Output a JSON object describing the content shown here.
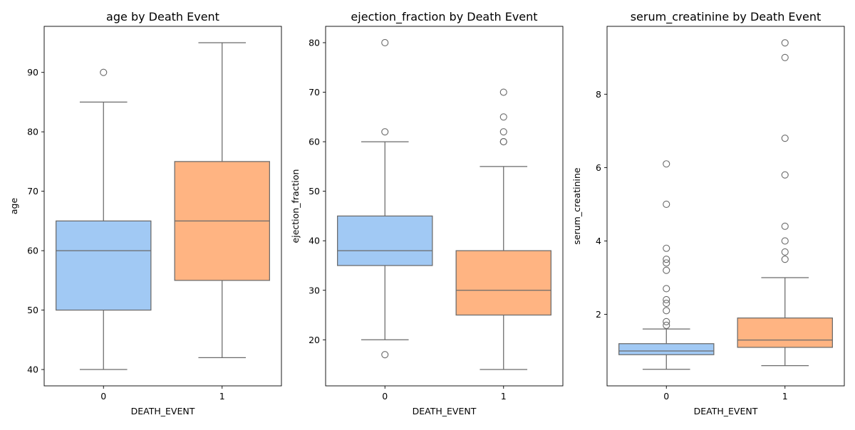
{
  "colors": {
    "group0": "#a1c9f4",
    "group1": "#ffb482",
    "stroke": "#6a6a6a",
    "axis": "#000000",
    "flier": "#6a6a6a"
  },
  "chart_data": [
    {
      "type": "box",
      "title": "age by Death Event",
      "xlabel": "DEATH_EVENT",
      "ylabel": "age",
      "categories": [
        "0",
        "1"
      ],
      "ylim": [
        37.25,
        97.75
      ],
      "yticks": [
        40,
        50,
        60,
        70,
        80,
        90
      ],
      "ytick_labels": [
        "40",
        "50",
        "60",
        "70",
        "80",
        "90"
      ],
      "boxes": [
        {
          "category": "0",
          "whisker_low": 40,
          "q1": 50,
          "median": 60,
          "q3": 65,
          "whisker_high": 85,
          "outliers": [
            90
          ]
        },
        {
          "category": "1",
          "whisker_low": 42,
          "q1": 55,
          "median": 65,
          "q3": 75,
          "whisker_high": 95,
          "outliers": []
        }
      ]
    },
    {
      "type": "box",
      "title": "ejection_fraction by Death Event",
      "xlabel": "DEATH_EVENT",
      "ylabel": "ejection_fraction",
      "categories": [
        "0",
        "1"
      ],
      "ylim": [
        10.7,
        83.3
      ],
      "yticks": [
        20,
        30,
        40,
        50,
        60,
        70,
        80
      ],
      "ytick_labels": [
        "20",
        "30",
        "40",
        "50",
        "60",
        "70",
        "80"
      ],
      "boxes": [
        {
          "category": "0",
          "whisker_low": 20,
          "q1": 35,
          "median": 38,
          "q3": 45,
          "whisker_high": 60,
          "outliers": [
            17,
            62,
            80
          ]
        },
        {
          "category": "1",
          "whisker_low": 14,
          "q1": 25,
          "median": 30,
          "q3": 38,
          "whisker_high": 55,
          "outliers": [
            60,
            60,
            62,
            65,
            70
          ]
        }
      ]
    },
    {
      "type": "box",
      "title": "serum_creatinine by Death Event",
      "xlabel": "DEATH_EVENT",
      "ylabel": "serum_creatinine",
      "categories": [
        "0",
        "1"
      ],
      "ylim": [
        0.05,
        9.85
      ],
      "yticks": [
        2,
        4,
        6,
        8
      ],
      "ytick_labels": [
        "2",
        "4",
        "6",
        "8"
      ],
      "boxes": [
        {
          "category": "0",
          "whisker_low": 0.5,
          "q1": 0.9,
          "median": 1.0,
          "q3": 1.2,
          "whisker_high": 1.6,
          "outliers": [
            1.7,
            1.8,
            2.1,
            2.3,
            2.4,
            2.7,
            3.2,
            3.4,
            3.5,
            3.8,
            5.0,
            6.1
          ]
        },
        {
          "category": "1",
          "whisker_low": 0.6,
          "q1": 1.1,
          "median": 1.3,
          "q3": 1.9,
          "whisker_high": 3.0,
          "outliers": [
            3.5,
            3.7,
            4.0,
            4.4,
            5.8,
            6.8,
            9.0,
            9.4
          ]
        }
      ]
    }
  ]
}
